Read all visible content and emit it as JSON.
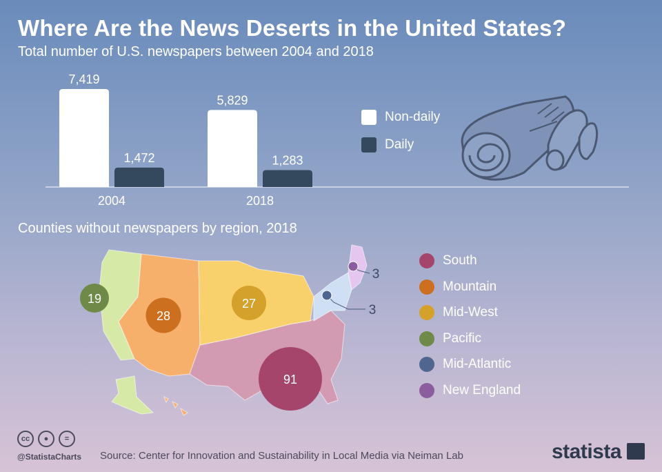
{
  "header": {
    "title": "Where Are the News Deserts in the United States?",
    "subtitle": "Total number of U.S. newspapers between 2004 and 2018",
    "section2_title": "Counties without newspapers by region, 2018"
  },
  "chart_data": [
    {
      "type": "bar",
      "title": "Total number of U.S. newspapers between 2004 and 2018",
      "categories": [
        "2004",
        "2018"
      ],
      "series": [
        {
          "name": "Non-daily",
          "values": [
            7419,
            5829
          ],
          "color": "#ffffff",
          "labels": [
            "7,419",
            "5,829"
          ]
        },
        {
          "name": "Daily",
          "values": [
            1472,
            1283
          ],
          "color": "#34495e",
          "labels": [
            "1,472",
            "1,283"
          ]
        }
      ],
      "ylim": [
        0,
        7419
      ],
      "legend": "right"
    },
    {
      "type": "bubble-map",
      "title": "Counties without newspapers by region, 2018",
      "regions": [
        {
          "name": "South",
          "value": 91,
          "label": "91",
          "color": "#a6456b"
        },
        {
          "name": "Mountain",
          "value": 28,
          "label": "28",
          "color": "#cc6f1f"
        },
        {
          "name": "Mid-West",
          "value": 27,
          "label": "27",
          "color": "#d4a22a"
        },
        {
          "name": "Pacific",
          "value": 19,
          "label": "19",
          "color": "#6f8a48"
        },
        {
          "name": "Mid-Atlantic",
          "value": 3,
          "label": "3",
          "color": "#4f6690"
        },
        {
          "name": "New England",
          "value": 3,
          "label": "3",
          "color": "#8b5d9f"
        }
      ],
      "legend": "right"
    }
  ],
  "footer": {
    "handle": "@StatistaCharts",
    "source": "Source: Center for Innovation and Sustainability in Local Media via Neiman Lab",
    "brand": "statista",
    "license_icons": [
      "cc-icon",
      "person-icon",
      "equals-icon"
    ]
  },
  "colors": {
    "axis": "#d7e0ee",
    "dark_text": "#4a4a5a",
    "map_pacific": "#d6e9a6",
    "map_mountain": "#f7b06b",
    "map_midwest": "#f9d16c",
    "map_south": "#d39bb2",
    "map_midatlantic": "#cfe0f4",
    "map_newengland": "#e4c6ef"
  }
}
